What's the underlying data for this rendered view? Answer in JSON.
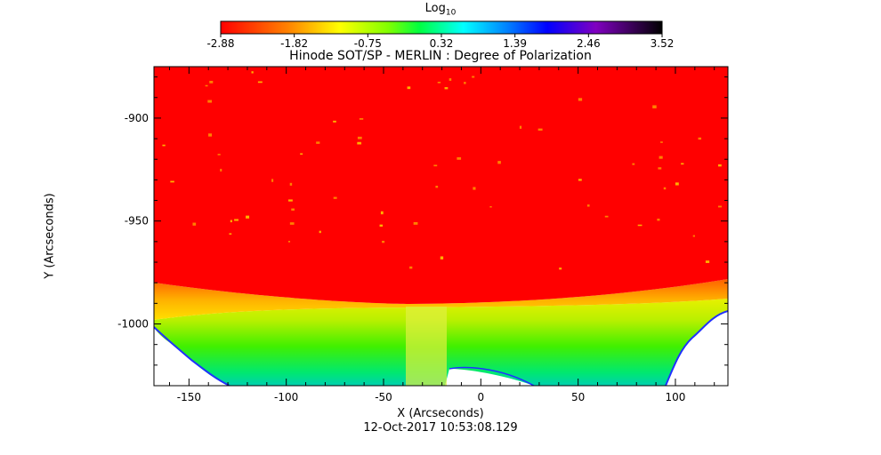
{
  "colorbar": {
    "title_main": "Log",
    "title_sub": "10",
    "tick_labels": [
      "-2.88",
      "-1.82",
      "-0.75",
      "0.32",
      "1.39",
      "2.46",
      "3.52"
    ]
  },
  "chart_data": {
    "type": "heatmap",
    "title": "Hinode SOT/SP - MERLIN : Degree of Polarization",
    "xlabel": "X (Arcseconds)",
    "ylabel": "Y (Arcseconds)",
    "xlim": [
      -168,
      127
    ],
    "ylim": [
      -1030,
      -875
    ],
    "x_ticks": [
      -150,
      -100,
      -50,
      0,
      50,
      100
    ],
    "y_ticks": [
      -900,
      -950,
      -1000
    ],
    "colorbar_range": [
      -2.88,
      3.52
    ],
    "colormap": [
      "#ff0000",
      "#ff8000",
      "#ffff00",
      "#80ff00",
      "#00ff00",
      "#00ffff",
      "#0080ff",
      "#0000ff",
      "#8000ff",
      "#000000"
    ],
    "limb_y": [
      -979,
      -990,
      -976
    ],
    "limb_x": [
      -168,
      -20,
      127
    ]
  },
  "footer": {
    "timestamp": "12-Oct-2017 10:53:08.129"
  }
}
